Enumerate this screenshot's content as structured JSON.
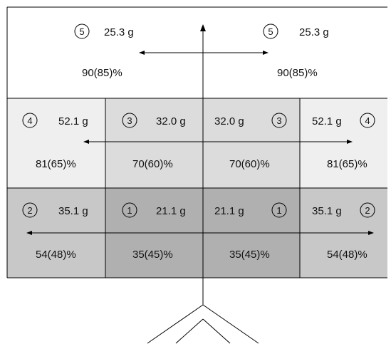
{
  "colors": {
    "top": "#ffffff",
    "row4_outer": "#efefef",
    "row4_inner": "#dcdcdc",
    "row2_outer": "#c8c8c8",
    "row2_inner": "#b0b0b0",
    "line": "#000000"
  },
  "top_row": {
    "left": {
      "zone": "5",
      "weight": "25.3 g",
      "percent": "90(85)%"
    },
    "right": {
      "zone": "5",
      "weight": "25.3 g",
      "percent": "90(85)%"
    }
  },
  "middle_row": {
    "outer_left": {
      "zone": "4",
      "weight": "52.1 g",
      "percent": "81(65)%"
    },
    "inner_left": {
      "zone": "3",
      "weight": "32.0 g",
      "percent": "70(60)%"
    },
    "inner_right": {
      "zone": "3",
      "weight": "32.0 g",
      "percent": "70(60)%"
    },
    "outer_right": {
      "zone": "4",
      "weight": "52.1 g",
      "percent": "81(65)%"
    }
  },
  "bottom_row": {
    "outer_left": {
      "zone": "2",
      "weight": "35.1 g",
      "percent": "54(48)%"
    },
    "inner_left": {
      "zone": "1",
      "weight": "21.1 g",
      "percent": "35(45)%"
    },
    "inner_right": {
      "zone": "1",
      "weight": "21.1 g",
      "percent": "35(45)%"
    },
    "outer_right": {
      "zone": "2",
      "weight": "35.1 g",
      "percent": "54(48)%"
    }
  }
}
